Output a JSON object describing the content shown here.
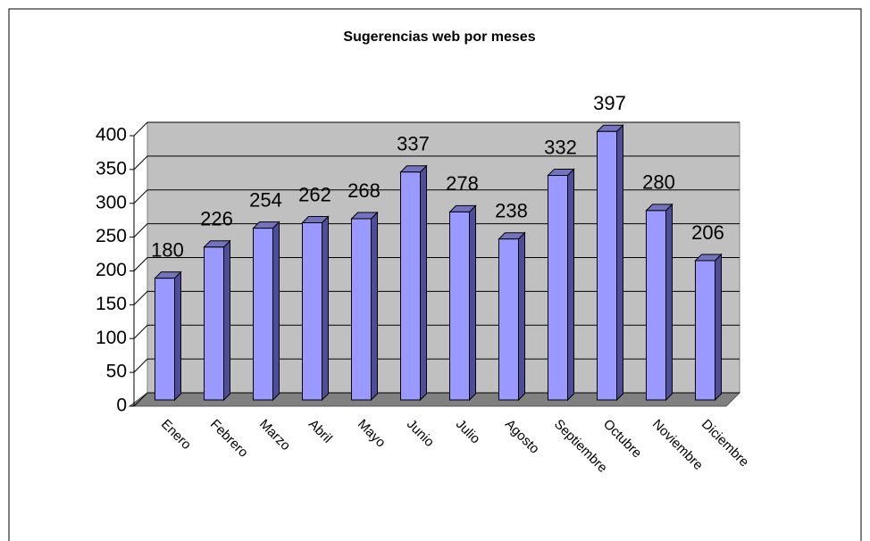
{
  "chart_data": {
    "type": "bar",
    "title": "Sugerencias web por meses",
    "categories": [
      "Enero",
      "Febrero",
      "Marzo",
      "Abril",
      "Mayo",
      "Junio",
      "Julio",
      "Agosto",
      "Septiembre",
      "Octubre",
      "Noviembre",
      "Diciembre"
    ],
    "values": [
      180,
      226,
      254,
      262,
      268,
      337,
      278,
      238,
      332,
      397,
      280,
      206
    ],
    "color": "#9999ff",
    "ylim": [
      0,
      400
    ],
    "yticks": [
      0,
      50,
      100,
      150,
      200,
      250,
      300,
      350,
      400
    ],
    "grid": true
  }
}
